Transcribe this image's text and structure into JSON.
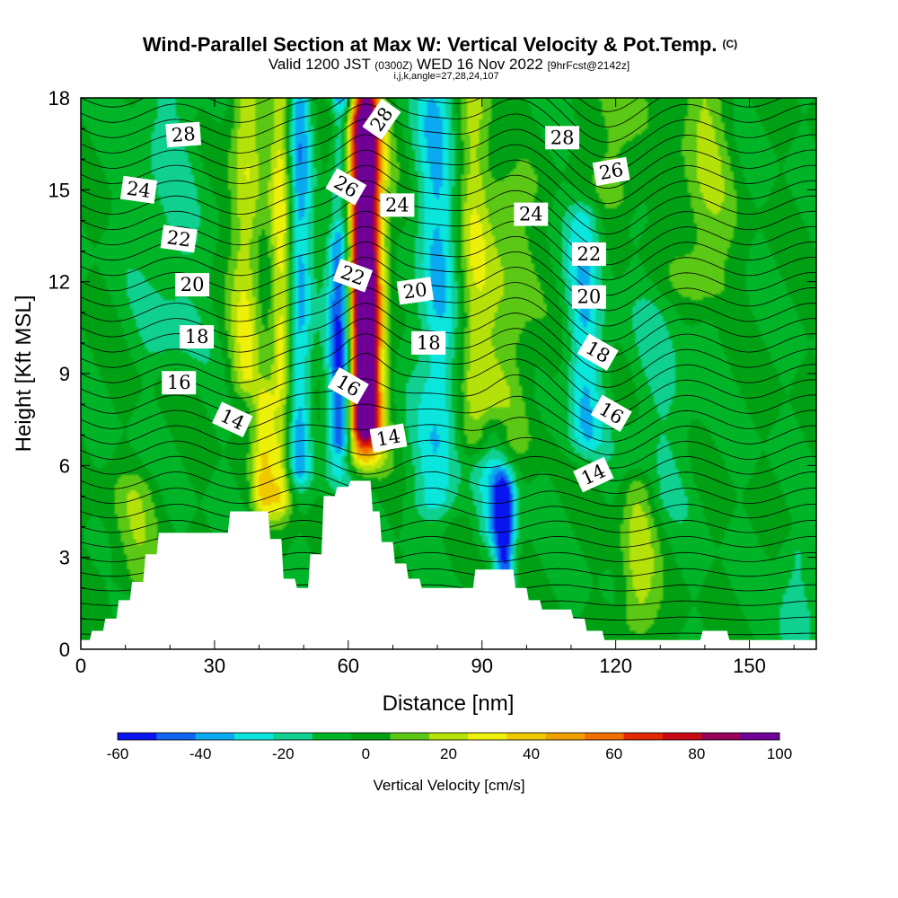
{
  "title": {
    "main": "Wind-Parallel Section at Max W: Vertical Velocity & Pot.Temp.",
    "copyright": "(C)",
    "valid_prefix": "Valid 1200 JST",
    "valid_z": "(0300Z)",
    "valid_date": "WED 16 Nov 2022",
    "forecast": "[9hrFcst@2142z]",
    "params": "i,j,k,angle=27,28,24,107"
  },
  "chart_data": {
    "type": "heatmap",
    "xlabel": "Distance [nm]",
    "ylabel": "Height [Kft MSL]",
    "xlim": [
      0,
      165
    ],
    "ylim": [
      0,
      18
    ],
    "xticks": [
      0,
      30,
      60,
      90,
      120,
      150
    ],
    "yticks": [
      0,
      3,
      6,
      9,
      12,
      15,
      18
    ],
    "x_tick_labels": [
      "0",
      "30",
      "60",
      "90",
      "120",
      "150"
    ],
    "y_tick_labels": [
      "0",
      "3",
      "6",
      "9",
      "12",
      "15",
      "18"
    ],
    "grid": false,
    "colorbar": {
      "title": "Vertical Velocity [cm/s]",
      "placement": "bottom",
      "bounds": [
        -60,
        -50,
        -40,
        -30,
        -20,
        -10,
        0,
        10,
        20,
        30,
        40,
        50,
        60,
        70,
        80,
        90,
        100
      ],
      "colors": [
        "#0a14ee",
        "#0f64f0",
        "#0aaaf0",
        "#0ae6dc",
        "#10d090",
        "#00b428",
        "#00a014",
        "#5ac814",
        "#b4e10a",
        "#eef00a",
        "#f0c800",
        "#f0a000",
        "#f06e00",
        "#e12800",
        "#c80a14",
        "#96005a",
        "#6e0096"
      ],
      "tick_labels": [
        "-60",
        "-40",
        "-20",
        "0",
        "20",
        "40",
        "60",
        "80",
        "100"
      ]
    },
    "velocity_field": {
      "description_units": "cm/s",
      "background": 0,
      "features": [
        {
          "x": 64,
          "y_from": 7.5,
          "y_to": 18,
          "w": 3.2,
          "peak": 95
        },
        {
          "x": 62,
          "y_from": 6.5,
          "y_to": 17,
          "w": 5.5,
          "peak": 50
        },
        {
          "x": 58.5,
          "y_from": 7,
          "y_to": 18,
          "w": 2.6,
          "peak": -50
        },
        {
          "x": 58,
          "y_from": 6,
          "y_to": 13,
          "w": 3.5,
          "peak": -30
        },
        {
          "x": 49,
          "y_from": 6,
          "y_to": 18,
          "w": 2.8,
          "peak": -35
        },
        {
          "x": 45,
          "y_from": 5,
          "y_to": 18,
          "w": 2.5,
          "peak": 35
        },
        {
          "x": 37,
          "y_from": 9,
          "y_to": 18,
          "w": 3.5,
          "peak": 30
        },
        {
          "x": 41,
          "y_from": 5,
          "y_to": 8,
          "w": 2.5,
          "peak": 35
        },
        {
          "x": 80,
          "y_from": 5,
          "y_to": 18,
          "w": 5,
          "peak": -30
        },
        {
          "x": 95,
          "y_from": 2.5,
          "y_to": 5,
          "w": 2.2,
          "peak": -50
        },
        {
          "x": 93,
          "y_from": 4,
          "y_to": 7,
          "w": 4,
          "peak": -25
        },
        {
          "x": 88,
          "y_from": 7,
          "y_to": 18,
          "w": 4,
          "peak": 25
        },
        {
          "x": 96,
          "y_from": 7,
          "y_to": 15,
          "w": 6,
          "peak": 18
        },
        {
          "x": 113,
          "y_from": 7,
          "y_to": 14,
          "w": 4,
          "peak": -28
        },
        {
          "x": 125,
          "y_from": 1,
          "y_to": 5,
          "w": 4,
          "peak": 25
        },
        {
          "x": 140,
          "y_from": 12,
          "y_to": 18,
          "w": 6,
          "peak": 20
        },
        {
          "x": 120,
          "y_from": 15,
          "y_to": 18,
          "w": 5,
          "peak": 18
        },
        {
          "x": 12,
          "y_from": 2.5,
          "y_to": 5,
          "w": 6,
          "peak": 15
        },
        {
          "x": 20,
          "y_from": 10,
          "y_to": 18,
          "w": 8,
          "peak": -12
        },
        {
          "x": 160,
          "y_from": 0.5,
          "y_to": 3,
          "w": 4,
          "peak": -15
        },
        {
          "x": 130,
          "y_from": 5,
          "y_to": 11,
          "w": 8,
          "peak": -10
        }
      ]
    },
    "theta_contours": {
      "interval": 0.5,
      "range": [
        10,
        30
      ],
      "labels": [
        {
          "text": "28",
          "x": 23,
          "y": 16.8,
          "angle": -4
        },
        {
          "text": "28",
          "x": 67.5,
          "y": 17.3,
          "angle": -55
        },
        {
          "text": "28",
          "x": 108,
          "y": 16.7,
          "angle": 0
        },
        {
          "text": "26",
          "x": 119,
          "y": 15.6,
          "angle": -10
        },
        {
          "text": "26",
          "x": 59.5,
          "y": 15.1,
          "angle": 30
        },
        {
          "text": "24",
          "x": 13,
          "y": 15.0,
          "angle": 8
        },
        {
          "text": "24",
          "x": 71,
          "y": 14.5,
          "angle": 0
        },
        {
          "text": "24",
          "x": 101,
          "y": 14.2,
          "angle": 0
        },
        {
          "text": "22",
          "x": 22,
          "y": 13.4,
          "angle": 8
        },
        {
          "text": "22",
          "x": 114,
          "y": 12.9,
          "angle": 0
        },
        {
          "text": "22",
          "x": 61,
          "y": 12.2,
          "angle": 20
        },
        {
          "text": "20",
          "x": 25,
          "y": 11.9,
          "angle": 0
        },
        {
          "text": "20",
          "x": 75,
          "y": 11.7,
          "angle": -8
        },
        {
          "text": "20",
          "x": 114,
          "y": 11.5,
          "angle": 0
        },
        {
          "text": "18",
          "x": 26,
          "y": 10.2,
          "angle": 0
        },
        {
          "text": "18",
          "x": 78,
          "y": 10.0,
          "angle": 0
        },
        {
          "text": "18",
          "x": 116,
          "y": 9.7,
          "angle": 30
        },
        {
          "text": "16",
          "x": 22,
          "y": 8.7,
          "angle": 0
        },
        {
          "text": "16",
          "x": 60,
          "y": 8.6,
          "angle": 30
        },
        {
          "text": "16",
          "x": 119,
          "y": 7.7,
          "angle": 30
        },
        {
          "text": "14",
          "x": 34,
          "y": 7.5,
          "angle": 25
        },
        {
          "text": "14",
          "x": 69,
          "y": 6.9,
          "angle": -10
        },
        {
          "text": "14",
          "x": 115,
          "y": 5.7,
          "angle": -25
        }
      ]
    },
    "terrain": {
      "x": [
        0,
        2,
        2.5,
        5,
        5.5,
        8,
        8.5,
        11,
        11.5,
        14,
        14.5,
        17,
        17.5,
        20,
        20.5,
        33,
        33.5,
        42,
        42.5,
        45,
        45.5,
        48,
        48.5,
        51,
        51.5,
        54,
        54.5,
        57,
        57.5,
        60,
        60.5,
        65,
        65.5,
        67,
        67.5,
        70,
        70.5,
        73,
        73.5,
        76,
        76.5,
        79,
        79.5,
        88,
        88.5,
        97,
        97.5,
        100,
        100.5,
        103,
        103.5,
        106,
        106.5,
        110,
        110.5,
        113,
        113.5,
        117,
        117.5,
        121,
        121.5,
        139,
        139.5,
        145,
        145.5,
        165
      ],
      "y": [
        0.3,
        0.3,
        0.6,
        0.6,
        1.0,
        1.0,
        1.6,
        1.6,
        2.2,
        2.2,
        3.1,
        3.1,
        3.8,
        3.8,
        3.8,
        3.8,
        4.5,
        4.5,
        3.6,
        3.6,
        2.3,
        2.3,
        2.0,
        2.0,
        3.1,
        3.1,
        5.0,
        5.0,
        5.3,
        5.3,
        5.5,
        5.5,
        4.5,
        4.5,
        3.5,
        3.5,
        2.8,
        2.8,
        2.3,
        2.3,
        2.0,
        2.0,
        2.0,
        2.0,
        2.6,
        2.6,
        2.0,
        2.0,
        1.6,
        1.6,
        1.3,
        1.3,
        1.3,
        1.3,
        1.0,
        1.0,
        0.6,
        0.6,
        0.3,
        0.3,
        0.3,
        0.3,
        0.6,
        0.6,
        0.3,
        0.3
      ]
    }
  }
}
